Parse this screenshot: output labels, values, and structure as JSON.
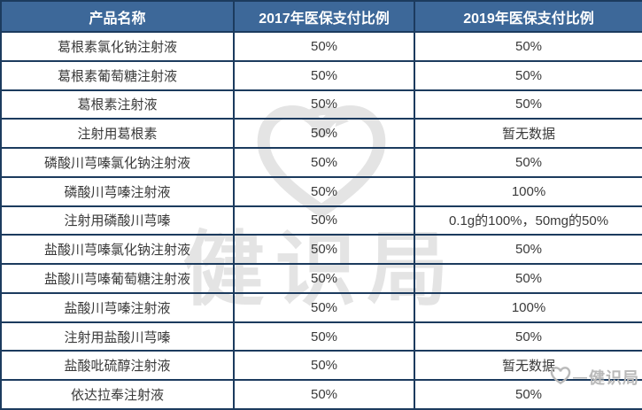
{
  "chart_data": {
    "type": "table",
    "columns": [
      "产品名称",
      "2017年医保支付比例",
      "2019年医保支付比例"
    ],
    "rows": [
      [
        "葛根素氯化钠注射液",
        "50%",
        "50%"
      ],
      [
        "葛根素葡萄糖注射液",
        "50%",
        "50%"
      ],
      [
        "葛根素注射液",
        "50%",
        "50%"
      ],
      [
        "注射用葛根素",
        "50%",
        "暂无数据"
      ],
      [
        "磷酸川芎嗪氯化钠注射液",
        "50%",
        "50%"
      ],
      [
        "磷酸川芎嗪注射液",
        "50%",
        "100%"
      ],
      [
        "注射用磷酸川芎嗪",
        "50%",
        "0.1g的100%，50mg的50%"
      ],
      [
        "盐酸川芎嗪氯化钠注射液",
        "50%",
        "50%"
      ],
      [
        "盐酸川芎嗪葡萄糖注射液",
        "50%",
        "50%"
      ],
      [
        "盐酸川芎嗪注射液",
        "50%",
        "100%"
      ],
      [
        "注射用盐酸川芎嗪",
        "50%",
        "50%"
      ],
      [
        "盐酸吡硫醇注射液",
        "50%",
        "暂无数据"
      ],
      [
        "依达拉奉注射液",
        "50%",
        "50%"
      ]
    ]
  },
  "watermark": {
    "text": "健识局",
    "icon": "heart-swirl-icon"
  },
  "corner_logo": {
    "text": "健识局",
    "icon": "heart-icon"
  },
  "colors": {
    "header_bg": "#3d6899",
    "header_text": "#ffffff",
    "border": "#1c3b5e",
    "cell_text": "#3a3a3a",
    "watermark": "#e4e4e4",
    "corner_logo": "#b9b9b9"
  }
}
